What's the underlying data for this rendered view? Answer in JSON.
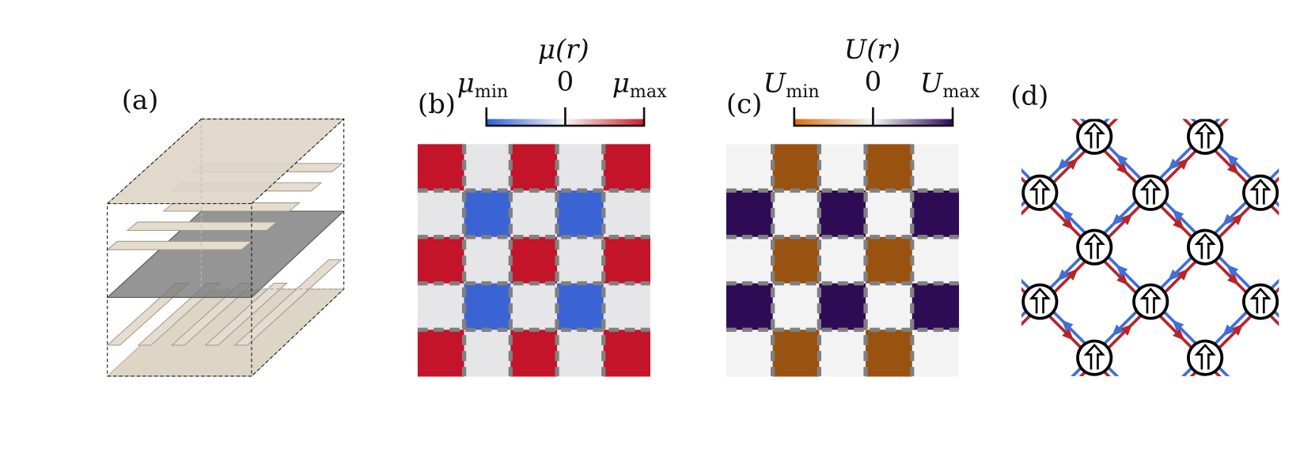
{
  "panels": {
    "a": {
      "label": "(a)"
    },
    "b": {
      "label": "(b)",
      "colorbar": {
        "title": "μ(r)",
        "min_label": {
          "symbol": "μ",
          "subscript": "min"
        },
        "zero_label": "0",
        "max_label": {
          "symbol": "μ",
          "subscript": "max"
        }
      }
    },
    "c": {
      "label": "(c)",
      "colorbar": {
        "title": "U(r)",
        "min_label": {
          "symbol": "U",
          "subscript": "min"
        },
        "zero_label": "0",
        "max_label": {
          "symbol": "U",
          "subscript": "max"
        }
      }
    },
    "d": {
      "label": "(d)"
    }
  }
}
